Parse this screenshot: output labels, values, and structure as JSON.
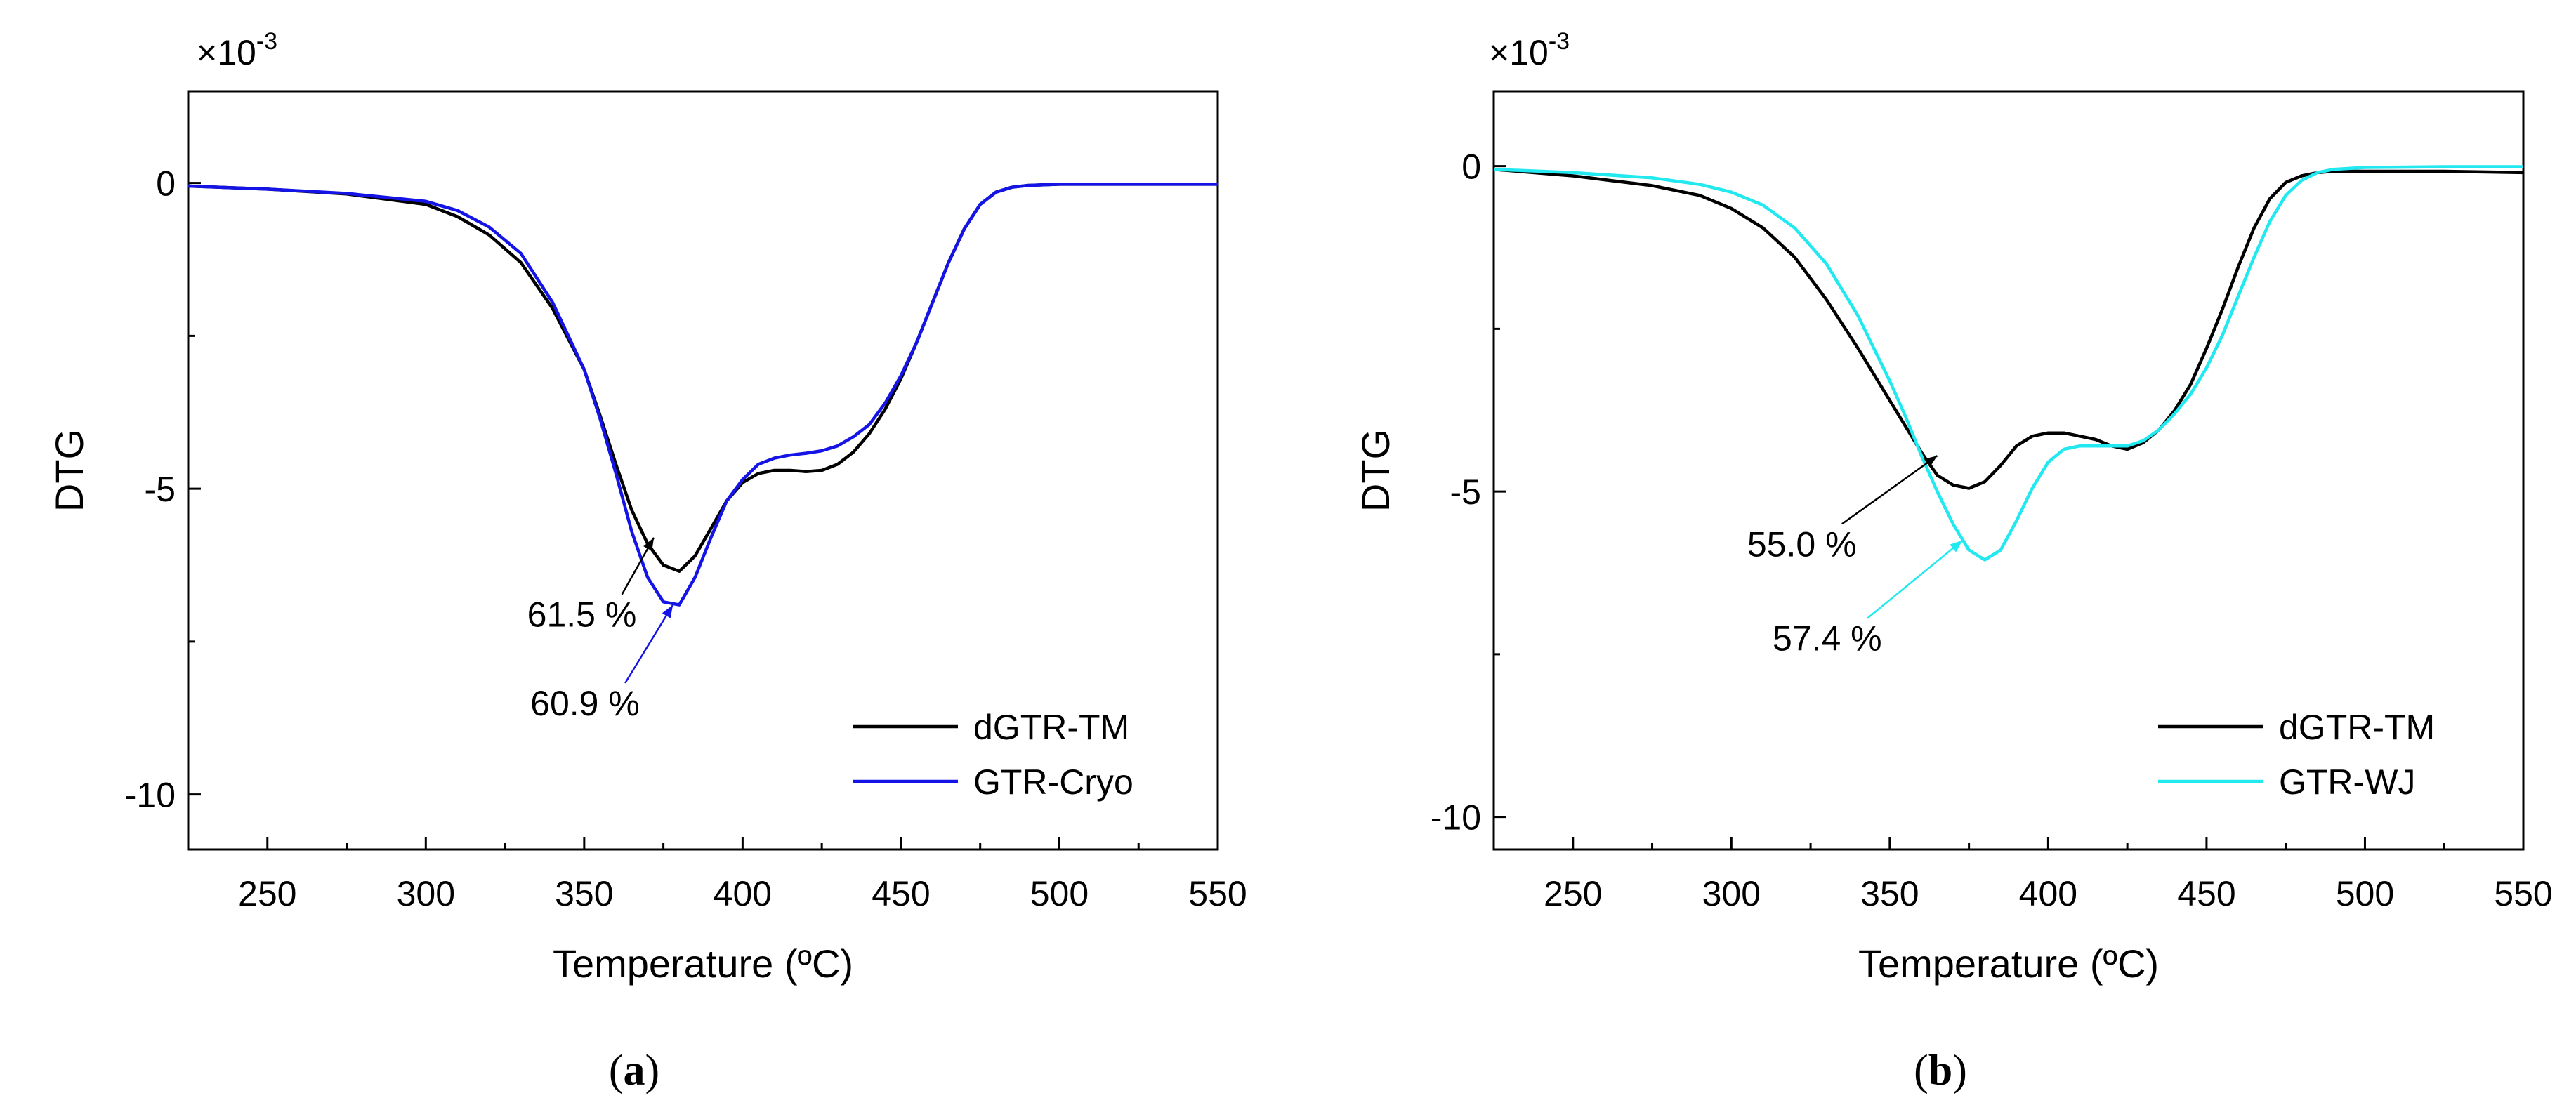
{
  "chart_data": [
    {
      "type": "line",
      "caption": "a",
      "xlabel": "Temperature (ºC)",
      "ylabel": "DTG",
      "y_multiplier_base": "×10",
      "y_multiplier_exp": "-3",
      "xlim": [
        225,
        550
      ],
      "ylim": [
        -10.9,
        1.5
      ],
      "xticks": [
        250,
        300,
        350,
        400,
        450,
        500,
        550
      ],
      "yticks": [
        0,
        -5,
        -10
      ],
      "legend_position": "bottom-right",
      "series": [
        {
          "name": "dGTR-TM",
          "color": "#000000",
          "x": [
            225,
            250,
            275,
            300,
            310,
            320,
            330,
            340,
            350,
            355,
            360,
            365,
            370,
            375,
            380,
            385,
            390,
            395,
            400,
            405,
            410,
            415,
            420,
            425,
            430,
            435,
            440,
            445,
            450,
            455,
            460,
            465,
            470,
            475,
            480,
            485,
            490,
            500,
            525,
            550
          ],
          "y": [
            -0.05,
            -0.1,
            -0.18,
            -0.35,
            -0.55,
            -0.85,
            -1.3,
            -2.05,
            -3.05,
            -3.8,
            -4.6,
            -5.35,
            -5.9,
            -6.25,
            -6.35,
            -6.1,
            -5.65,
            -5.2,
            -4.9,
            -4.75,
            -4.7,
            -4.7,
            -4.72,
            -4.7,
            -4.6,
            -4.4,
            -4.1,
            -3.7,
            -3.2,
            -2.6,
            -1.95,
            -1.3,
            -0.75,
            -0.35,
            -0.15,
            -0.07,
            -0.04,
            -0.02,
            -0.02,
            -0.02
          ]
        },
        {
          "name": "GTR-Cryo",
          "color": "#1414e6",
          "x": [
            225,
            250,
            275,
            300,
            310,
            320,
            330,
            340,
            350,
            355,
            360,
            365,
            370,
            375,
            380,
            385,
            390,
            395,
            400,
            405,
            410,
            415,
            420,
            425,
            430,
            435,
            440,
            445,
            450,
            455,
            460,
            465,
            470,
            475,
            480,
            485,
            490,
            500,
            525,
            550
          ],
          "y": [
            -0.05,
            -0.1,
            -0.17,
            -0.3,
            -0.45,
            -0.72,
            -1.15,
            -1.95,
            -3.05,
            -3.85,
            -4.75,
            -5.7,
            -6.45,
            -6.85,
            -6.9,
            -6.45,
            -5.8,
            -5.2,
            -4.85,
            -4.6,
            -4.5,
            -4.45,
            -4.42,
            -4.38,
            -4.3,
            -4.15,
            -3.95,
            -3.6,
            -3.15,
            -2.6,
            -1.95,
            -1.3,
            -0.75,
            -0.35,
            -0.15,
            -0.07,
            -0.04,
            -0.02,
            -0.02,
            -0.02
          ]
        }
      ],
      "annotations": [
        {
          "text": "61.5 %",
          "color": "#000000",
          "tip_x": 372,
          "tip_y": -5.8,
          "text_x": 332,
          "text_y": -7.05
        },
        {
          "text": "60.9 %",
          "color": "#1414e6",
          "tip_x": 378,
          "tip_y": -6.9,
          "text_x": 333,
          "text_y": -8.5
        }
      ]
    },
    {
      "type": "line",
      "caption": "b",
      "xlabel": "Temperature (ºC)",
      "ylabel": "DTG",
      "y_multiplier_base": "×10",
      "y_multiplier_exp": "-3",
      "xlim": [
        225,
        550
      ],
      "ylim": [
        -10.5,
        1.15
      ],
      "xticks": [
        250,
        300,
        350,
        400,
        450,
        500,
        550
      ],
      "yticks": [
        0,
        -5,
        -10
      ],
      "legend_position": "bottom-right",
      "series": [
        {
          "name": "dGTR-TM",
          "color": "#000000",
          "x": [
            225,
            250,
            275,
            290,
            300,
            310,
            320,
            330,
            340,
            350,
            355,
            360,
            365,
            370,
            375,
            380,
            385,
            390,
            395,
            400,
            405,
            410,
            415,
            420,
            425,
            430,
            435,
            440,
            445,
            450,
            455,
            460,
            465,
            470,
            475,
            480,
            485,
            490,
            500,
            525,
            550
          ],
          "y": [
            -0.05,
            -0.15,
            -0.3,
            -0.45,
            -0.65,
            -0.95,
            -1.4,
            -2.05,
            -2.8,
            -3.6,
            -4.0,
            -4.4,
            -4.75,
            -4.9,
            -4.95,
            -4.85,
            -4.6,
            -4.3,
            -4.15,
            -4.1,
            -4.1,
            -4.15,
            -4.2,
            -4.3,
            -4.35,
            -4.25,
            -4.05,
            -3.75,
            -3.35,
            -2.8,
            -2.2,
            -1.55,
            -0.95,
            -0.5,
            -0.25,
            -0.15,
            -0.1,
            -0.08,
            -0.08,
            -0.08,
            -0.1
          ]
        },
        {
          "name": "GTR-WJ",
          "color": "#22e8f0",
          "x": [
            225,
            250,
            275,
            290,
            300,
            310,
            320,
            330,
            340,
            350,
            355,
            360,
            365,
            370,
            375,
            380,
            385,
            390,
            395,
            400,
            405,
            410,
            415,
            420,
            425,
            430,
            435,
            440,
            445,
            450,
            455,
            460,
            465,
            470,
            475,
            480,
            485,
            490,
            500,
            525,
            550
          ],
          "y": [
            -0.05,
            -0.1,
            -0.18,
            -0.28,
            -0.4,
            -0.6,
            -0.95,
            -1.5,
            -2.3,
            -3.3,
            -3.85,
            -4.45,
            -5.0,
            -5.5,
            -5.9,
            -6.05,
            -5.9,
            -5.45,
            -4.95,
            -4.55,
            -4.35,
            -4.3,
            -4.3,
            -4.3,
            -4.3,
            -4.22,
            -4.05,
            -3.8,
            -3.5,
            -3.1,
            -2.6,
            -2.0,
            -1.4,
            -0.85,
            -0.45,
            -0.22,
            -0.1,
            -0.05,
            -0.02,
            -0.01,
            -0.01
          ]
        }
      ],
      "annotations": [
        {
          "text": "55.0 %",
          "color": "#000000",
          "tip_x": 365,
          "tip_y": -4.45,
          "text_x": 305,
          "text_y": -5.8
        },
        {
          "text": "57.4 %",
          "color": "#22e8f0",
          "tip_x": 373,
          "tip_y": -5.75,
          "text_x": 313,
          "text_y": -7.25
        }
      ]
    }
  ]
}
